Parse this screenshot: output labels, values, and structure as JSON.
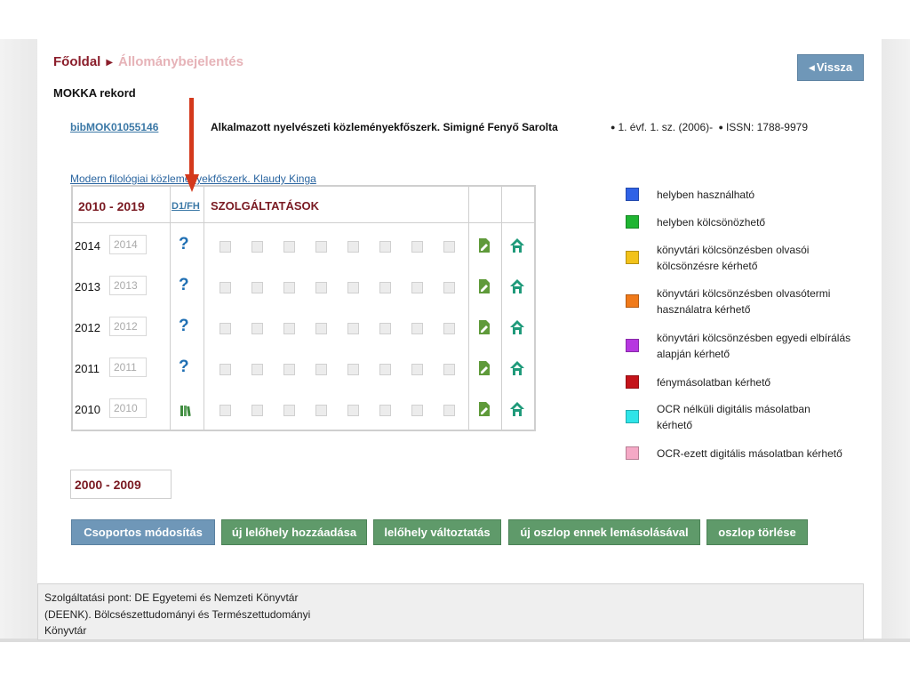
{
  "breadcrumb": {
    "home": "Főoldal",
    "current": "Állománybejelentés"
  },
  "back_button": "Vissza",
  "section_title": "MOKKA rekord",
  "record": {
    "id": "bibMOK01055146",
    "title": "Alkalmazott nyelvészeti közleményekfőszerk. Simigné Fenyő Sarolta",
    "meta1": "1. évf. 1. sz. (2006)-",
    "meta2": "ISSN: 1788-9979"
  },
  "related_link": "Modern filológiai közleményekfőszerk. Klaudy Kinga",
  "grid": {
    "range_label": "2010 - 2019",
    "d1fh_label": "D1/FH",
    "services_label": "SZOLGÁLTATÁSOK",
    "rows": [
      {
        "year": "2014",
        "input_value": "2014",
        "status": "question"
      },
      {
        "year": "2013",
        "input_value": "2013",
        "status": "question"
      },
      {
        "year": "2012",
        "input_value": "2012",
        "status": "question"
      },
      {
        "year": "2011",
        "input_value": "2011",
        "status": "question"
      },
      {
        "year": "2010",
        "input_value": "2010",
        "status": "books"
      }
    ]
  },
  "legend": [
    {
      "color": "#2f62e6",
      "label": "helyben használható"
    },
    {
      "color": "#1fb532",
      "label": "helyben kölcsönözhető"
    },
    {
      "color": "#f2c21a",
      "label": "könyvtári kölcsönzésben olvasói kölcsönzésre kérhető"
    },
    {
      "color": "#f07a1a",
      "label": "könyvtári kölcsönzésben olvasótermi használatra kérhető"
    },
    {
      "color": "#b637e0",
      "label": "könyvtári kölcsönzésben egyedi elbírálás alapján kérhető"
    },
    {
      "color": "#c4131a",
      "label": "fénymásolatban kérhető"
    },
    {
      "color": "#2ee4e8",
      "label": "OCR nélküli digitális másolatban kérhető"
    },
    {
      "color": "#f5a9c6",
      "label": "OCR-ezett digitális másolatban kérhető"
    }
  ],
  "range2_label": "2000 - 2009",
  "buttons": {
    "group_edit": "Csoportos módosítás",
    "add_location": "új lelőhely hozzáadása",
    "change_location": "lelőhely változtatás",
    "copy_column": "új oszlop ennek lemásolásával",
    "delete_column": "oszlop törlése"
  },
  "footer": {
    "service_point": "Szolgáltatási pont: DE Egyetemi és Nemzeti Könyvtár (DEENK). Bölcsészettudományi és Természettudományi Könyvtár"
  },
  "colors": {
    "accent_red": "#7a1a22",
    "button_blue": "#6f97b8",
    "button_green": "#5f9a6a",
    "annotation_arrow": "#d4391c"
  },
  "icons": {
    "question": "question-icon",
    "books": "books-icon",
    "edit": "edit-icon",
    "home": "home-icon"
  }
}
